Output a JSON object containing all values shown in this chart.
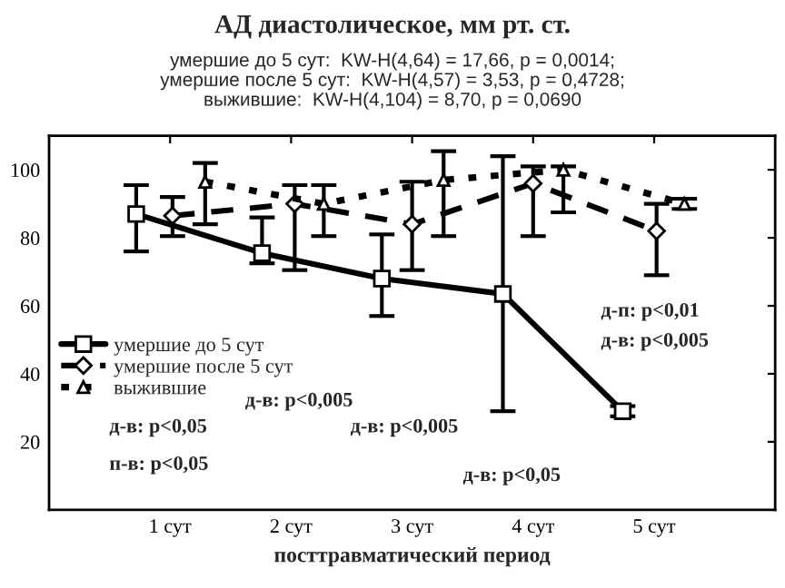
{
  "chart_data": {
    "type": "line",
    "title": "АД диастолическое, мм рт. ст.",
    "subtitle": "умершие до 5 сут:  KW-H(4,64) = 17,66, p = 0,0014;\nумершие после 5 сут:  KW-H(4,57) = 3,53, p = 0,4728;\nвыжившие:  KW-H(4,104) = 8,70, p = 0,0690",
    "xlabel": "посттравматический период",
    "xlim": [
      0,
      6
    ],
    "xticks": [
      {
        "value": 1,
        "label": "1 сут"
      },
      {
        "value": 2,
        "label": "2 сут"
      },
      {
        "value": 3,
        "label": "3 сут"
      },
      {
        "value": 4,
        "label": "4 сут"
      },
      {
        "value": 5,
        "label": "5 сут"
      }
    ],
    "ylim": [
      0,
      110
    ],
    "yticks": [
      20,
      40,
      60,
      80,
      100
    ],
    "grid": false,
    "legend": "left",
    "series": [
      {
        "name": "умершие до 5 сут",
        "color": "#000000",
        "marker": "square",
        "line_style": "solid",
        "x": [
          0.72,
          1.76,
          2.75,
          3.75,
          4.74
        ],
        "values": [
          87,
          75.5,
          68,
          63.5,
          29
        ],
        "errors": [
          [
            76,
            95.5
          ],
          [
            72.5,
            86
          ],
          [
            57,
            81
          ],
          [
            29,
            104
          ],
          [
            27.5,
            30.5
          ]
        ]
      },
      {
        "name": "умершие после 5 сут",
        "color": "#000000",
        "marker": "diamond",
        "line_style": "dashed",
        "x": [
          1.02,
          2.03,
          3.0,
          4.0,
          5.02
        ],
        "values": [
          86.5,
          90,
          84,
          96,
          82
        ],
        "errors": [
          [
            80.5,
            92
          ],
          [
            70.5,
            95.5
          ],
          [
            70.5,
            96.5
          ],
          [
            80.5,
            101
          ],
          [
            69,
            90
          ]
        ]
      },
      {
        "name": "выжившие",
        "color": "#000000",
        "marker": "triangle",
        "line_style": "dotted",
        "x": [
          1.29,
          2.27,
          3.26,
          4.25,
          5.25
        ],
        "values": [
          96.5,
          90,
          97,
          100,
          90
        ],
        "errors": [
          [
            84,
            102
          ],
          [
            80.5,
            95.5
          ],
          [
            80.5,
            105.5
          ],
          [
            87.5,
            101
          ],
          [
            88.5,
            91.5
          ]
        ]
      }
    ],
    "annotations": [
      "д-п: p<0,01",
      "д-в: p<0,005",
      "д-в: p<0,005",
      "д-в: p<0,05",
      "д-в: p<0,005",
      "п-в: p<0,05",
      "д-в: p<0,05"
    ]
  }
}
